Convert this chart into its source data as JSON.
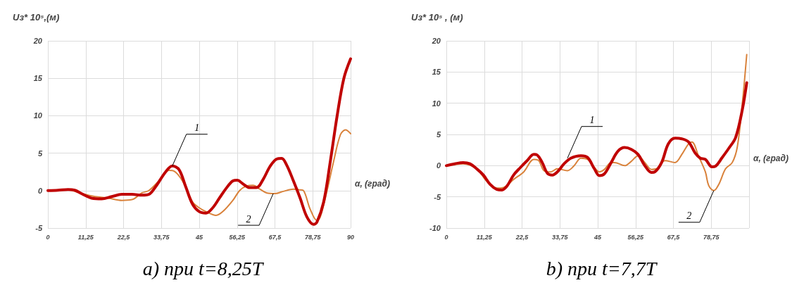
{
  "chart_data": [
    {
      "type": "line",
      "title": "a) при t=8,25T",
      "ylabel": "Uз* 10⁵,(м)",
      "xlabel": "α, (град)",
      "xlim": [
        0,
        90
      ],
      "ylim": [
        -5,
        20
      ],
      "xticks": [
        0,
        {
          "value": 11.25,
          "label": "11,25"
        },
        {
          "value": 22.5,
          "label": "22,5"
        },
        {
          "value": 33.75,
          "label": "33,75"
        },
        45,
        {
          "value": 56.25,
          "label": "56,25"
        },
        {
          "value": 67.5,
          "label": "67,5"
        },
        {
          "value": 78.75,
          "label": "78,75"
        },
        90
      ],
      "yticks": [
        -5,
        0,
        5,
        10,
        15,
        20
      ],
      "grid": true,
      "series": [
        {
          "color": "#c00000",
          "x": [
            0,
            3,
            6,
            8,
            10,
            13,
            16,
            19,
            22,
            25,
            28,
            30,
            32,
            35,
            37,
            39,
            41,
            43,
            45,
            47,
            49,
            51,
            53,
            55,
            56.3,
            58,
            60,
            62,
            64,
            66,
            68,
            69.5,
            71,
            73,
            75,
            77,
            79,
            80,
            82,
            84,
            86,
            88,
            90
          ],
          "values": [
            0,
            0.05,
            0.15,
            0.05,
            -0.4,
            -1.0,
            -1.1,
            -0.8,
            -0.5,
            -0.5,
            -0.6,
            -0.5,
            0.5,
            2.5,
            3.3,
            2.8,
            0.5,
            -1.8,
            -2.8,
            -3.0,
            -2.3,
            -1.0,
            0.3,
            1.3,
            1.4,
            0.9,
            0.4,
            0.4,
            1.5,
            3.2,
            4.2,
            4.3,
            3.4,
            1.3,
            -1.0,
            -3.5,
            -4.5,
            -4.2,
            -1.5,
            4,
            10,
            15,
            17.6
          ]
        },
        {
          "color": "#d9823b",
          "x": [
            0,
            6,
            10,
            14,
            18,
            22,
            25,
            28,
            30,
            33,
            36,
            37.5,
            40,
            43,
            45,
            47,
            50,
            52,
            55,
            57,
            59,
            61,
            63,
            65,
            67.5,
            70,
            73,
            75,
            76,
            78,
            80,
            81,
            83,
            85,
            87,
            88.5,
            90
          ],
          "values": [
            0,
            0.1,
            -0.4,
            -0.8,
            -1.0,
            -1.3,
            -1.2,
            -0.3,
            0,
            1.3,
            2.7,
            2.6,
            1.3,
            -1.5,
            -2.3,
            -2.8,
            -3.3,
            -2.8,
            -1.3,
            0,
            0.6,
            0.7,
            0.2,
            -0.3,
            -0.4,
            -0.1,
            0.2,
            0.1,
            0.0,
            -2.5,
            -4.0,
            -3.5,
            0,
            4,
            7.5,
            8.1,
            7.6
          ]
        }
      ],
      "annotations": [
        {
          "text": "1",
          "x": 37,
          "y": 3.3
        },
        {
          "text": "2",
          "x": 67,
          "y": -0.4
        }
      ]
    },
    {
      "type": "line",
      "title": "b) при t=7,7T",
      "ylabel": "Uз* 10⁵ , (м)",
      "xlabel": "α, (град)",
      "xlim": [
        0,
        90
      ],
      "ylim": [
        -10,
        20
      ],
      "xticks": [
        0,
        {
          "value": 11.25,
          "label": "11,25"
        },
        {
          "value": 22.5,
          "label": "22,5"
        },
        {
          "value": 33.75,
          "label": "33,75"
        },
        45,
        {
          "value": 56.25,
          "label": "56,25"
        },
        {
          "value": 67.5,
          "label": "67,5"
        },
        {
          "value": 78.75,
          "label": "78,75"
        },
        {
          "value": 90,
          "label": null
        }
      ],
      "yticks": [
        -10,
        -5,
        0,
        5,
        10,
        15,
        20
      ],
      "grid": true,
      "series": [
        {
          "color": "#c00000",
          "x": [
            0,
            2.5,
            5,
            7,
            9,
            11,
            13,
            15,
            16.5,
            18,
            20,
            22,
            24,
            26,
            27,
            28.5,
            30,
            31.5,
            33,
            35,
            37,
            40,
            42,
            44,
            45.5,
            47,
            49,
            51,
            53,
            55,
            57,
            59,
            61,
            62,
            64,
            66,
            68,
            70,
            72,
            74,
            75.5,
            77,
            79,
            80,
            82,
            84,
            86,
            88,
            89.3
          ],
          "values": [
            0,
            0.3,
            0.5,
            0.3,
            -0.5,
            -1.5,
            -3,
            -3.8,
            -3.9,
            -3.3,
            -1.5,
            -0.3,
            0.8,
            1.8,
            1.7,
            0.5,
            -1.2,
            -1.5,
            -1.0,
            0.3,
            1.2,
            1.6,
            1.3,
            -0.5,
            -1.6,
            -1.3,
            0.5,
            2.3,
            2.9,
            2.6,
            1.8,
            0,
            -1.1,
            -1.0,
            0.5,
            3.5,
            4.4,
            4.3,
            3.8,
            2.0,
            1.2,
            1.0,
            -0.2,
            -0.1,
            1.3,
            2.8,
            4.5,
            9,
            13.3
          ]
        },
        {
          "color": "#d9823b",
          "x": [
            0,
            5,
            9,
            12,
            15,
            17,
            20,
            23,
            26,
            27.5,
            29,
            31,
            33,
            36,
            38,
            40,
            42,
            44,
            45.5,
            47,
            49,
            50,
            53,
            55,
            57,
            59,
            61,
            62.5,
            64,
            65,
            68,
            70,
            72,
            73,
            75,
            77,
            78,
            79.5,
            81,
            83,
            85,
            86.5,
            88,
            89.3
          ],
          "values": [
            0,
            0.3,
            -0.5,
            -2.5,
            -3.6,
            -3.5,
            -2.2,
            -1.0,
            1.0,
            0.8,
            -0.8,
            -1.0,
            -0.5,
            -0.8,
            0,
            1.2,
            1.0,
            -0.3,
            -1.0,
            -0.6,
            0.5,
            0.5,
            0,
            0.7,
            1.6,
            0.5,
            -0.6,
            -0.5,
            0.5,
            0.8,
            0.5,
            1.8,
            3.5,
            3.8,
            1.5,
            -1.0,
            -3.2,
            -4.0,
            -3.0,
            -0.5,
            0.5,
            3,
            10,
            17.8
          ]
        }
      ],
      "annotations": [
        {
          "text": "1",
          "x": 36,
          "y": 1.2
        },
        {
          "text": "2",
          "x": 79.5,
          "y": -4.0
        }
      ]
    }
  ]
}
